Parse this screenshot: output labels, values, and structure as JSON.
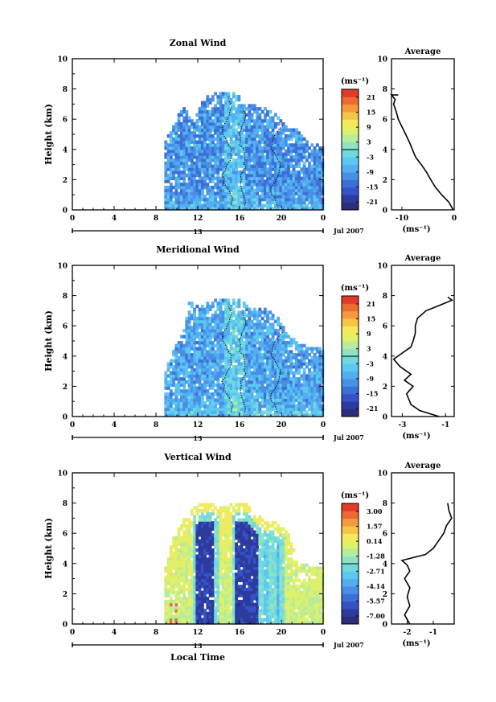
{
  "colors": {
    "scale": [
      "#2b2e78",
      "#2d3a9e",
      "#3553c6",
      "#3d6fd8",
      "#4a8fe6",
      "#52aef0",
      "#5cc8f2",
      "#6fd9e0",
      "#8fe3c2",
      "#b6ec9c",
      "#dff06a",
      "#f5e85a",
      "#f7c44a",
      "#f49a3d",
      "#ef6a32",
      "#e23a2a"
    ],
    "axis": "#000000",
    "contour": "#000000"
  },
  "chart_data": [
    {
      "id": "zonal",
      "type": "heatmap",
      "title": "Zonal Wind",
      "ylabel": "Height (km)",
      "xlabel": "",
      "xlim": [
        0,
        24
      ],
      "ylim": [
        0,
        10
      ],
      "xticks": [
        "0",
        "4",
        "8",
        "12",
        "16",
        "20",
        "0"
      ],
      "xtick_values": [
        0,
        4,
        8,
        12,
        16,
        20,
        24
      ],
      "yticks": [
        "0",
        "2",
        "4",
        "6",
        "8",
        "10"
      ],
      "date_tick": "13",
      "date_label": "Jul 2007",
      "colorbar": {
        "unit_label": "(ms⁻¹)",
        "ticks": [
          "21",
          "15",
          "9",
          "3",
          "-3",
          "-9",
          "-15",
          "-21"
        ],
        "range": [
          -24,
          24
        ]
      },
      "field": {
        "t_start": 8.8,
        "t_end": 24,
        "base": -10,
        "z_top": [
          [
            8.8,
            4.5
          ],
          [
            9.5,
            5.5
          ],
          [
            10.5,
            6.8
          ],
          [
            11.5,
            6.0
          ],
          [
            12.5,
            7.3
          ],
          [
            13.5,
            7.7
          ],
          [
            14.5,
            7.6
          ],
          [
            15.5,
            7.7
          ],
          [
            16.5,
            7.0
          ],
          [
            17.5,
            6.8
          ],
          [
            18.5,
            6.6
          ],
          [
            19.5,
            6.2
          ],
          [
            20.5,
            5.3
          ],
          [
            21.5,
            5.2
          ],
          [
            22.5,
            4.3
          ],
          [
            23.5,
            4.2
          ],
          [
            24,
            4.2
          ]
        ]
      },
      "profile": {
        "title": "Average",
        "xlabel": "(ms⁻¹)",
        "xlim": [
          -12,
          0
        ],
        "xticks": [
          "-10",
          "0"
        ],
        "xtick_values": [
          -10,
          0
        ],
        "x": [
          -0.2,
          -1.0,
          -2.4,
          -3.6,
          -4.5,
          -5.3,
          -6.3,
          -7.4,
          -8.0,
          -8.6,
          -9.3,
          -10.0,
          -10.7,
          -11.1,
          -11.6,
          -11.3,
          -12.0,
          -10.7
        ],
        "y": [
          0.0,
          0.5,
          1.0,
          1.5,
          2.0,
          2.5,
          3.0,
          3.5,
          4.0,
          4.5,
          5.0,
          5.5,
          6.0,
          6.5,
          7.0,
          7.3,
          7.6,
          7.6
        ]
      }
    },
    {
      "id": "meridional",
      "type": "heatmap",
      "title": "Meridional Wind",
      "ylabel": "Height (km)",
      "xlabel": "",
      "xlim": [
        0,
        24
      ],
      "ylim": [
        0,
        10
      ],
      "xticks": [
        "0",
        "4",
        "8",
        "12",
        "16",
        "20",
        "0"
      ],
      "xtick_values": [
        0,
        4,
        8,
        12,
        16,
        20,
        24
      ],
      "yticks": [
        "0",
        "2",
        "4",
        "6",
        "8",
        "10"
      ],
      "date_tick": "13",
      "date_label": "Jul 2007",
      "colorbar": {
        "unit_label": "(ms⁻¹)",
        "ticks": [
          "21",
          "15",
          "9",
          "3",
          "-3",
          "-9",
          "-15",
          "-21"
        ],
        "range": [
          -24,
          24
        ]
      },
      "field": {
        "t_start": 8.8,
        "t_end": 24,
        "base": -8,
        "z_top": [
          [
            8.8,
            3.0
          ],
          [
            9.5,
            4.3
          ],
          [
            10.5,
            5.5
          ],
          [
            11.0,
            7.5
          ],
          [
            12.5,
            7.3
          ],
          [
            13.5,
            7.8
          ],
          [
            14.5,
            7.6
          ],
          [
            15.5,
            7.8
          ],
          [
            16.5,
            7.4
          ],
          [
            17.5,
            7.2
          ],
          [
            18.5,
            7.0
          ],
          [
            19.5,
            6.5
          ],
          [
            20.5,
            5.3
          ],
          [
            21.5,
            4.8
          ],
          [
            22.5,
            4.5
          ],
          [
            23.5,
            4.5
          ],
          [
            24,
            4.5
          ]
        ]
      },
      "profile": {
        "title": "Average",
        "xlabel": "(ms⁻¹)",
        "xlim": [
          -3.5,
          -0.6
        ],
        "xticks": [
          "-3",
          "-1"
        ],
        "xtick_values": [
          -3,
          -1
        ],
        "x": [
          -1.3,
          -2.2,
          -2.6,
          -2.8,
          -2.5,
          -2.9,
          -2.6,
          -3.1,
          -3.4,
          -3.0,
          -2.6,
          -2.5,
          -2.4,
          -2.4,
          -2.3,
          -1.9,
          -1.2,
          -0.7,
          -0.9
        ],
        "y": [
          0.0,
          0.4,
          0.8,
          1.5,
          2.0,
          2.4,
          2.8,
          3.3,
          3.8,
          4.2,
          4.6,
          5.0,
          5.5,
          6.0,
          6.5,
          7.0,
          7.4,
          7.7,
          7.9
        ]
      }
    },
    {
      "id": "vertical",
      "type": "heatmap",
      "title": "Vertical Wind",
      "ylabel": "Height (km)",
      "xlabel": "Local Time",
      "xlim": [
        0,
        24
      ],
      "ylim": [
        0,
        10
      ],
      "xticks": [
        "0",
        "4",
        "8",
        "12",
        "16",
        "20",
        "0"
      ],
      "xtick_values": [
        0,
        4,
        8,
        12,
        16,
        20,
        24
      ],
      "yticks": [
        "0",
        "2",
        "4",
        "6",
        "8",
        "10"
      ],
      "date_tick": "13",
      "date_label": "Jul 2007",
      "colorbar": {
        "unit_label": "(ms⁻¹)",
        "ticks": [
          "3.00",
          "1.57",
          "0.14",
          "-1.28",
          "-2.71",
          "-4.14",
          "-5.57",
          "-7.00"
        ],
        "range": [
          -7.7,
          3.7
        ]
      },
      "field": {
        "t_start": 8.8,
        "t_end": 24,
        "base": 0.2,
        "z_top": [
          [
            8.8,
            3.8
          ],
          [
            9.5,
            5.6
          ],
          [
            10.5,
            6.8
          ],
          [
            11.5,
            7.6
          ],
          [
            12.5,
            8.0
          ],
          [
            13.5,
            7.8
          ],
          [
            14.5,
            7.7
          ],
          [
            15.5,
            8.0
          ],
          [
            16.5,
            7.9
          ],
          [
            17.5,
            7.2
          ],
          [
            18.5,
            6.7
          ],
          [
            19.5,
            6.6
          ],
          [
            20.5,
            6.0
          ],
          [
            21.5,
            4.0
          ],
          [
            22.5,
            3.8
          ],
          [
            23.5,
            3.8
          ],
          [
            24,
            3.8
          ]
        ],
        "plumes": [
          [
            11.8,
            13.5,
            -7.0
          ],
          [
            15.5,
            17.6,
            -7.0
          ],
          [
            18.2,
            18.6,
            -3.5
          ],
          [
            19.4,
            19.8,
            -4.0
          ]
        ]
      },
      "profile": {
        "title": "Average",
        "xlabel": "(ms⁻¹)",
        "xlim": [
          -2.6,
          -0.2
        ],
        "xticks": [
          "-2",
          "-1"
        ],
        "xtick_values": [
          -2,
          -1
        ],
        "x": [
          -1.9,
          -2.1,
          -1.9,
          -2.0,
          -1.9,
          -2.1,
          -1.9,
          -2.0,
          -2.2,
          -1.3,
          -1.0,
          -0.8,
          -0.6,
          -0.5,
          -0.3,
          -0.4,
          -0.45
        ],
        "y": [
          0.0,
          0.6,
          1.2,
          1.8,
          2.4,
          3.0,
          3.5,
          3.9,
          4.2,
          4.6,
          5.0,
          5.5,
          6.0,
          6.5,
          7.0,
          7.5,
          8.0
        ]
      }
    }
  ]
}
